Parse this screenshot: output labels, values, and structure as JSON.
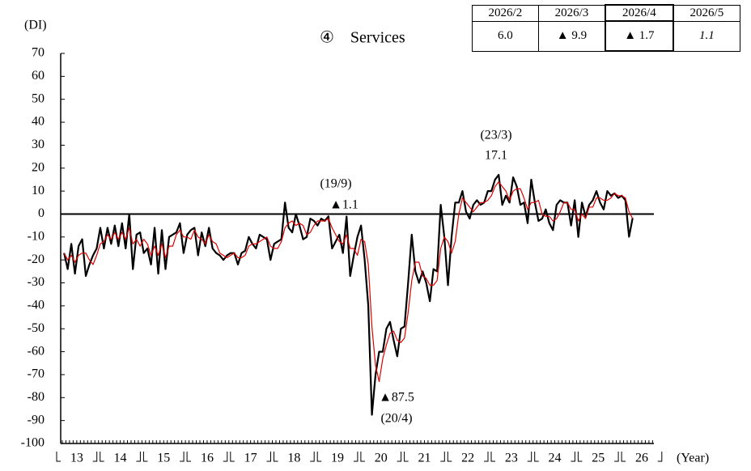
{
  "chart_data": {
    "type": "line",
    "title": "④　Services",
    "y_axis_label": "(DI)",
    "x_axis_label": "(Year)",
    "x_labels": [
      "13",
      "14",
      "15",
      "16",
      "17",
      "18",
      "19",
      "20",
      "21",
      "22",
      "23",
      "24",
      "25",
      "26"
    ],
    "ylim": [
      -100,
      70
    ],
    "yticks": [
      70,
      60,
      50,
      40,
      30,
      20,
      10,
      0,
      -10,
      -20,
      -30,
      -40,
      -50,
      -60,
      -70,
      -80,
      -90,
      -100
    ],
    "series": [
      {
        "color": "#000000",
        "values": [
          -17,
          -24,
          -13,
          -26,
          -14,
          -11,
          -27,
          -22,
          -18,
          -15,
          -6,
          -15,
          -6,
          -13,
          -5,
          -14,
          -4,
          -15,
          0,
          -24,
          -9,
          -8,
          -17,
          -15,
          -22,
          -6,
          -26,
          -7,
          -24,
          -10,
          -9,
          -8,
          -4,
          -17,
          -9,
          -7,
          -6,
          -18,
          -8,
          -14,
          -6,
          -15,
          -17,
          -18,
          -20,
          -18,
          -17,
          -17,
          -22,
          -17,
          -16,
          -10,
          -13,
          -15,
          -9,
          -10,
          -11,
          -20,
          -13,
          -12,
          -11,
          5,
          -6,
          -8,
          0,
          -5,
          -11,
          -10,
          -2,
          -3,
          -5,
          -2,
          -3,
          -1,
          -15,
          -12,
          -9,
          -17,
          -1.1,
          -27,
          -18,
          -10,
          -5,
          -20,
          -40,
          -87.5,
          -70,
          -60,
          -60,
          -50,
          -47,
          -55,
          -62,
          -50,
          -49,
          -30,
          -9,
          -25,
          -30,
          -25,
          -30,
          -38,
          -24,
          -25,
          4,
          -10,
          -31,
          -10,
          5,
          5,
          10,
          1,
          -2,
          4,
          6,
          4,
          5,
          10,
          10,
          15,
          17.1,
          4,
          8,
          5,
          16,
          12,
          4,
          5,
          -4,
          15,
          5,
          -3,
          -2,
          2,
          -4,
          -7,
          4,
          6,
          5,
          5,
          -5,
          6,
          -10,
          5,
          -1,
          4,
          6,
          10,
          5,
          2,
          10,
          8,
          9,
          7,
          8,
          6.0,
          -9.9,
          -1.7
        ]
      },
      {
        "color": "#e00000",
        "values": [
          -17,
          -20,
          -18,
          -21,
          -18,
          -17,
          -17,
          -20,
          -22,
          -18,
          -13,
          -12,
          -9,
          -11,
          -8,
          -11,
          -8,
          -11,
          -6,
          -13,
          -11,
          -14,
          -11,
          -13,
          -18,
          -14,
          -18,
          -13,
          -19,
          -14,
          -14,
          -9,
          -7,
          -10,
          -10,
          -11,
          -7,
          -10,
          -11,
          -13,
          -9,
          -12,
          -13,
          -17,
          -18,
          -19,
          -18,
          -17,
          -19,
          -19,
          -18,
          -14,
          -13,
          -13,
          -12,
          -11,
          -10,
          -14,
          -15,
          -15,
          -12,
          -6,
          -4,
          -3,
          -5,
          -4,
          -5,
          -9,
          -8,
          -5,
          -3,
          -3,
          -3,
          -2,
          -6,
          -9,
          -12,
          -13,
          -9,
          -15,
          -15,
          -18,
          -11,
          -12,
          -22,
          -49,
          -66,
          -73,
          -63,
          -57,
          -52,
          -51,
          -55,
          -56,
          -54,
          -43,
          -29,
          -21,
          -21,
          -27,
          -28,
          -31,
          -31,
          -29,
          -15,
          -10,
          -12,
          -17,
          -12,
          0,
          7,
          5,
          3,
          1,
          3,
          5,
          5,
          6,
          8,
          12,
          14,
          12,
          10,
          6,
          10,
          11,
          11,
          7,
          2,
          5,
          5,
          6,
          0,
          -1,
          -1,
          -3,
          -2,
          1,
          5,
          5,
          2,
          2,
          -3,
          0,
          -2,
          3,
          3,
          7,
          7,
          6,
          6,
          7,
          9,
          8,
          8,
          7,
          1,
          -2
        ]
      }
    ],
    "annotations": [
      "(19/9)",
      "▲1.1",
      "(23/3)",
      "17.1",
      "▲87.5",
      "(20/4)"
    ],
    "table": {
      "header": [
        "2026/2",
        "2026/3",
        "2026/4",
        "2026/5"
      ],
      "rows": [
        [
          "6.0",
          "▲ 9.9",
          "▲ 1.7",
          "1.1"
        ]
      ]
    }
  }
}
